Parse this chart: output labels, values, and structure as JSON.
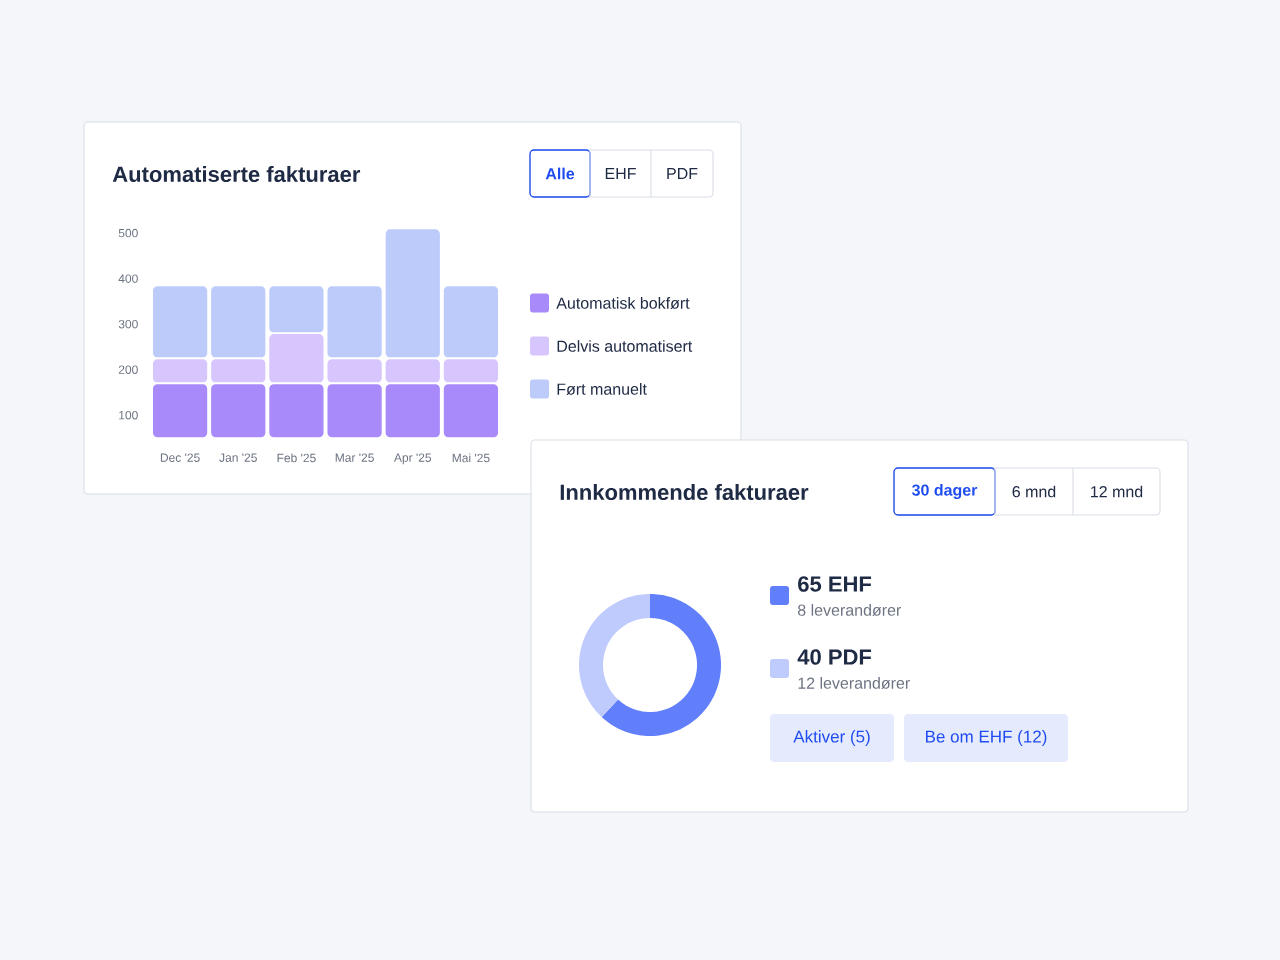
{
  "chart_data": [
    {
      "type": "bar",
      "title": "Automatiserte fakturaer",
      "stacked": true,
      "categories": [
        "Dec '25",
        "Jan '25",
        "Feb '25",
        "Mar '25",
        "Apr '25",
        "Mai '25"
      ],
      "series": [
        {
          "name": "Automatisk bokført",
          "color": "#a98afb",
          "values": [
            170,
            170,
            170,
            170,
            170,
            170
          ]
        },
        {
          "name": "Delvis automatisert",
          "color": "#d7c6fd",
          "values": [
            55,
            55,
            110,
            55,
            55,
            55
          ]
        },
        {
          "name": "Ført manuelt",
          "color": "#bdcbfb",
          "values": [
            160,
            160,
            105,
            160,
            285,
            160
          ]
        }
      ],
      "ylim": [
        50,
        520
      ],
      "yticks": [
        100,
        200,
        300,
        400,
        500
      ],
      "legend": "right",
      "annotations": [
        "Alle",
        "EHF",
        "PDF"
      ]
    },
    {
      "type": "donut",
      "title": "Innkommende fakturaer",
      "categories": [
        "EHF",
        "PDF"
      ],
      "values": [
        65,
        40
      ],
      "colors": [
        "#617ffb",
        "#bfcbfc"
      ],
      "data_labels": true,
      "legend": "right",
      "annotations": [
        "8 leverandører",
        "12 leverandører",
        "30 dager",
        "6 mnd",
        "12 mnd",
        "Aktiver (5)",
        "Be om EHF (12)"
      ]
    }
  ]
}
